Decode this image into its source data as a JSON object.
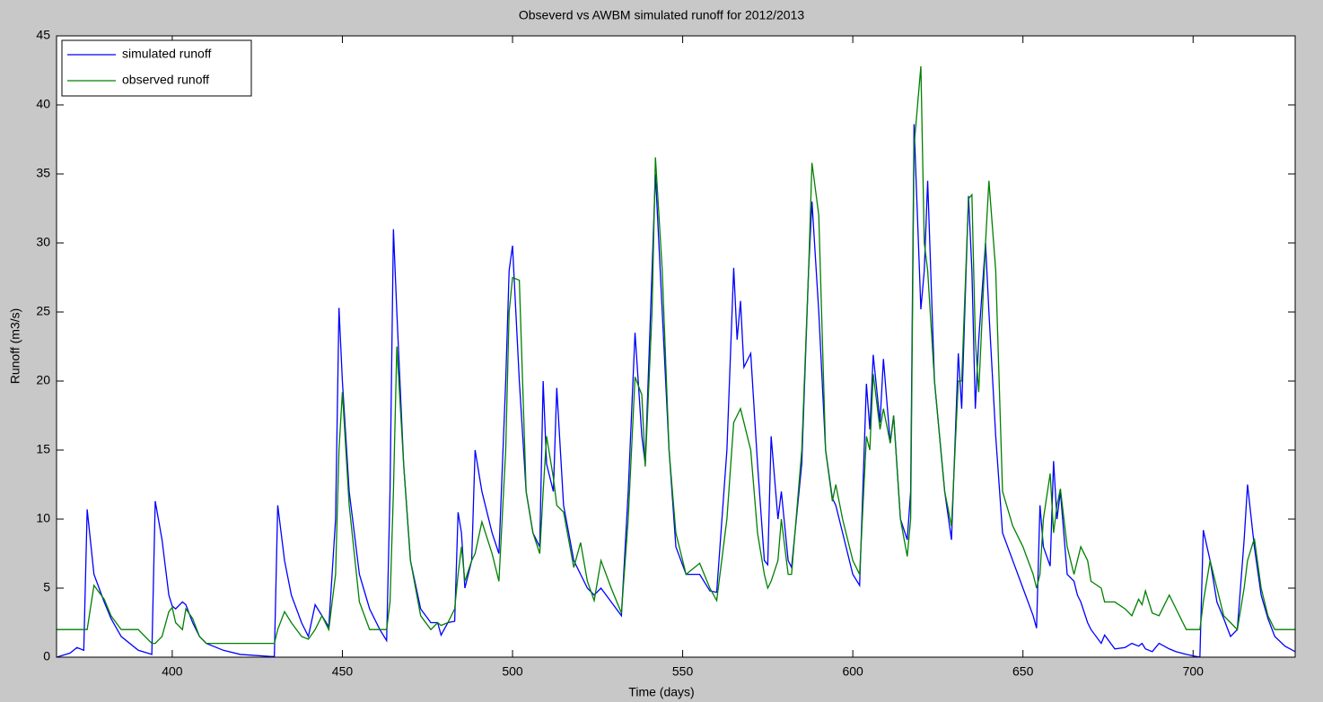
{
  "chart_data": {
    "type": "line",
    "title": "Obseverd vs AWBM simulated runoff for 2012/2013",
    "x_label": "Time (days)",
    "y_label": "Runoff (m3/s)",
    "xlim": [
      366,
      730
    ],
    "xticks": [
      400,
      450,
      500,
      550,
      600,
      650,
      700
    ],
    "ylim": [
      0,
      45
    ],
    "yticks": [
      0,
      5,
      10,
      15,
      20,
      25,
      30,
      35,
      40,
      45
    ],
    "grid": false,
    "legend": "upper-left",
    "x": [
      366,
      370,
      372,
      374,
      375,
      377,
      380,
      382,
      385,
      390,
      394,
      395,
      397,
      399,
      400,
      401,
      403,
      404,
      406,
      408,
      410,
      415,
      420,
      429,
      430,
      431,
      433,
      435,
      438,
      440,
      442,
      444,
      446,
      448,
      449,
      450,
      452,
      455,
      458,
      461,
      463,
      464,
      465,
      466,
      468,
      470,
      473,
      476,
      478,
      479,
      481,
      483,
      484,
      485,
      486,
      488,
      489,
      491,
      494,
      496,
      498,
      499,
      500,
      502,
      504,
      506,
      508,
      509,
      510,
      512,
      513,
      515,
      518,
      520,
      522,
      524,
      526,
      529,
      532,
      534,
      536,
      538,
      539,
      541,
      542,
      544,
      546,
      548,
      551,
      555,
      558,
      560,
      563,
      565,
      566,
      567,
      568,
      570,
      572,
      574,
      575,
      576,
      578,
      579,
      581,
      582,
      585,
      587,
      588,
      590,
      592,
      594,
      595,
      597,
      600,
      602,
      604,
      605,
      606,
      608,
      609,
      611,
      612,
      614,
      616,
      617,
      618,
      620,
      621,
      622,
      624,
      627,
      629,
      631,
      632,
      634,
      635,
      636,
      637,
      639,
      640,
      642,
      644,
      647,
      650,
      653,
      654,
      655,
      656,
      658,
      659,
      660,
      661,
      663,
      665,
      666,
      667,
      669,
      670,
      673,
      674,
      677,
      680,
      682,
      684,
      685,
      686,
      688,
      690,
      693,
      695,
      698,
      700,
      702,
      703,
      705,
      707,
      709,
      711,
      713,
      715,
      716,
      718,
      720,
      722,
      724,
      727,
      730
    ],
    "series": [
      {
        "name": "simulated runoff",
        "color": "#0000ff",
        "values": [
          0,
          0.3,
          0.7,
          0.5,
          10.7,
          6,
          4,
          2.8,
          1.5,
          0.5,
          0.2,
          11.3,
          8.5,
          4.5,
          3.7,
          3.5,
          4,
          3.8,
          2.5,
          1.5,
          1,
          0.5,
          0.2,
          0.05,
          0.05,
          11,
          7,
          4.5,
          2.5,
          1.5,
          3.8,
          3,
          2.2,
          10,
          25.3,
          20,
          12,
          6,
          3.5,
          2,
          1.2,
          12,
          31,
          25,
          14,
          7,
          3.5,
          2.5,
          2.5,
          1.6,
          2.5,
          2.6,
          10.5,
          9,
          5,
          7,
          15,
          12,
          9,
          7.5,
          20,
          28,
          29.8,
          20,
          12,
          9,
          8,
          20,
          14,
          12,
          19.5,
          11,
          7,
          6,
          5,
          4.5,
          5,
          4,
          3,
          12,
          23.5,
          16,
          14,
          28,
          35,
          25,
          15,
          8,
          6,
          6,
          4.8,
          4.7,
          15,
          28.2,
          23,
          25.8,
          21,
          22,
          14,
          7,
          6.7,
          16,
          10,
          12,
          7,
          6.5,
          14,
          28,
          33,
          25,
          15,
          11.5,
          11,
          9,
          6,
          5.2,
          19.8,
          16.5,
          21.9,
          17,
          21.6,
          15.5,
          17.5,
          10,
          8.5,
          12,
          38.6,
          25.2,
          28,
          34.5,
          20,
          12,
          8.5,
          22,
          18,
          33.4,
          28,
          18,
          23,
          30,
          25,
          16,
          9,
          7,
          5,
          3,
          2.1,
          11,
          8,
          6.6,
          14.2,
          10,
          12,
          6,
          5.5,
          4.5,
          4,
          2.5,
          2,
          1,
          1.6,
          0.6,
          0.7,
          1,
          0.8,
          1,
          0.6,
          0.4,
          1,
          0.6,
          0.4,
          0.2,
          0.1,
          0,
          9.2,
          7,
          4,
          2.8,
          1.5,
          2,
          8.5,
          12.5,
          8,
          4.5,
          2.8,
          1.5,
          0.8,
          0.4
        ]
      },
      {
        "name": "observed runoff",
        "color": "#008000",
        "values": [
          2,
          2,
          2,
          2,
          2,
          5.2,
          4.2,
          3,
          2,
          2,
          1,
          1,
          1.5,
          3.3,
          3.6,
          2.5,
          2,
          3.5,
          2.8,
          1.5,
          1,
          1,
          1,
          1,
          1,
          2,
          3.3,
          2.5,
          1.5,
          1.3,
          2,
          3,
          2,
          6,
          15,
          19.2,
          11,
          4,
          2,
          2,
          2,
          4,
          12,
          22.5,
          14,
          7,
          3,
          2,
          2.5,
          2.3,
          2.5,
          3.5,
          6,
          8,
          5.5,
          7,
          7.5,
          9.8,
          7.5,
          5.5,
          15,
          25,
          27.5,
          27.3,
          12,
          9,
          7.5,
          12,
          16,
          13,
          11,
          10.5,
          6.5,
          8.3,
          5.5,
          4.1,
          7,
          5,
          3.2,
          10,
          20.3,
          19,
          13.8,
          25,
          36.2,
          28,
          15,
          9,
          6,
          6.8,
          5,
          4.1,
          10,
          17,
          17.5,
          18,
          17,
          15,
          9,
          6,
          5,
          5.5,
          7,
          10,
          6,
          6,
          15,
          28,
          35.8,
          32,
          15,
          11.3,
          12.5,
          10,
          7,
          6,
          16,
          15,
          20.5,
          16.5,
          18,
          15.5,
          17.5,
          10,
          7.3,
          10,
          37,
          42.8,
          30,
          28,
          20,
          12,
          9.5,
          20,
          20,
          33.2,
          33.5,
          23,
          19.2,
          30,
          34.5,
          28,
          12,
          9.5,
          8,
          6,
          5,
          6,
          10,
          13.3,
          9,
          11,
          12.2,
          8,
          6,
          7,
          8,
          7,
          5.5,
          5,
          4,
          4,
          3.5,
          3,
          4.2,
          3.8,
          4.8,
          3.2,
          3,
          4.5,
          3.5,
          2,
          2,
          2,
          4,
          7,
          5,
          3,
          2.5,
          2,
          5,
          7,
          8.6,
          5,
          3,
          2,
          2,
          2
        ]
      }
    ]
  }
}
